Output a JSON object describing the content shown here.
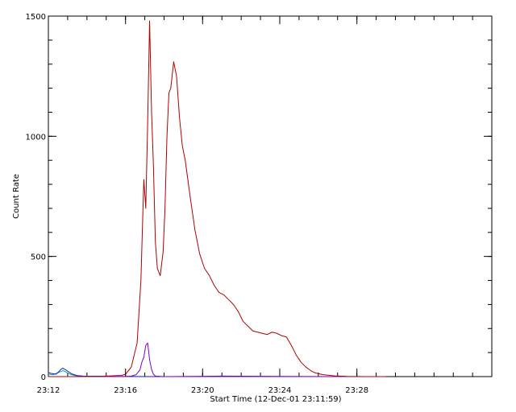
{
  "chart_data": {
    "type": "line",
    "xlabel": "Start Time (12-Dec-01 23:11:59)",
    "ylabel": "Count Rate",
    "xlim": [
      23.2,
      23.5833
    ],
    "ylim": [
      0,
      1500
    ],
    "x_ticks": [
      {
        "value": 23.2,
        "label": "23:12"
      },
      {
        "value": 23.2667,
        "label": "23:16"
      },
      {
        "value": 23.3333,
        "label": "23:20"
      },
      {
        "value": 23.4,
        "label": "23:24"
      },
      {
        "value": 23.4667,
        "label": "23:28"
      }
    ],
    "y_ticks": [
      {
        "value": 0,
        "label": "0"
      },
      {
        "value": 500,
        "label": "500"
      },
      {
        "value": 1000,
        "label": "1000"
      },
      {
        "value": 1500,
        "label": "1500"
      }
    ],
    "grid": false,
    "series": [
      {
        "color": "#b00000",
        "x": [
          23.1998,
          23.2167,
          23.2333,
          23.25,
          23.2633,
          23.2667,
          23.2717,
          23.2767,
          23.28,
          23.2825,
          23.2842,
          23.2858,
          23.2875,
          23.2892,
          23.2908,
          23.2925,
          23.2942,
          23.2967,
          23.2992,
          23.3008,
          23.3025,
          23.3042,
          23.3058,
          23.3083,
          23.3108,
          23.3133,
          23.3158,
          23.3183,
          23.3225,
          23.3267,
          23.3308,
          23.335,
          23.3392,
          23.3433,
          23.3475,
          23.3517,
          23.3558,
          23.36,
          23.3642,
          23.3683,
          23.3725,
          23.3767,
          23.3808,
          23.385,
          23.3892,
          23.3933,
          23.3975,
          23.4017,
          23.4058,
          23.41,
          23.4142,
          23.4183,
          23.4225,
          23.4267,
          23.4308,
          23.4375,
          23.4475,
          23.4583,
          23.475,
          23.4917
        ],
        "values": [
          0,
          0,
          0,
          2,
          5,
          10,
          40,
          140,
          400,
          820,
          700,
          1050,
          1480,
          1100,
          880,
          560,
          450,
          420,
          520,
          700,
          1000,
          1180,
          1200,
          1310,
          1250,
          1080,
          960,
          900,
          750,
          610,
          510,
          450,
          420,
          380,
          350,
          340,
          320,
          300,
          270,
          230,
          210,
          190,
          185,
          180,
          175,
          185,
          180,
          170,
          165,
          130,
          90,
          60,
          40,
          25,
          15,
          8,
          3,
          1,
          0,
          0
        ]
      },
      {
        "color": "#7a00cc",
        "x": [
          23.1998,
          23.2667,
          23.2717,
          23.2758,
          23.2775,
          23.2792,
          23.2808,
          23.2825,
          23.2842,
          23.2858,
          23.2875,
          23.2892,
          23.2908,
          23.2925,
          23.3,
          23.4917
        ],
        "values": [
          0,
          0,
          2,
          8,
          18,
          28,
          60,
          80,
          130,
          140,
          70,
          30,
          10,
          2,
          0,
          0
        ]
      },
      {
        "color": "#2020d0",
        "x": [
          23.1998,
          23.2017,
          23.2042,
          23.2067,
          23.2092,
          23.2108,
          23.2125,
          23.215,
          23.2175,
          23.22,
          23.2225,
          23.225,
          23.23,
          23.25,
          23.3,
          23.35,
          23.4,
          23.45,
          23.4917
        ],
        "values": [
          18,
          14,
          12,
          10,
          22,
          30,
          35,
          28,
          20,
          12,
          8,
          4,
          2,
          1,
          0,
          2,
          1,
          0,
          0
        ]
      },
      {
        "color": "#00a0a0",
        "x": [
          23.1998,
          23.2042,
          23.2092,
          23.2125,
          23.215,
          23.2175,
          23.22,
          23.225,
          23.2333,
          23.25,
          23.3,
          23.35,
          23.4,
          23.45,
          23.4917
        ],
        "values": [
          10,
          8,
          18,
          25,
          20,
          12,
          8,
          3,
          1,
          0,
          0,
          0,
          0,
          0,
          0
        ]
      }
    ]
  }
}
